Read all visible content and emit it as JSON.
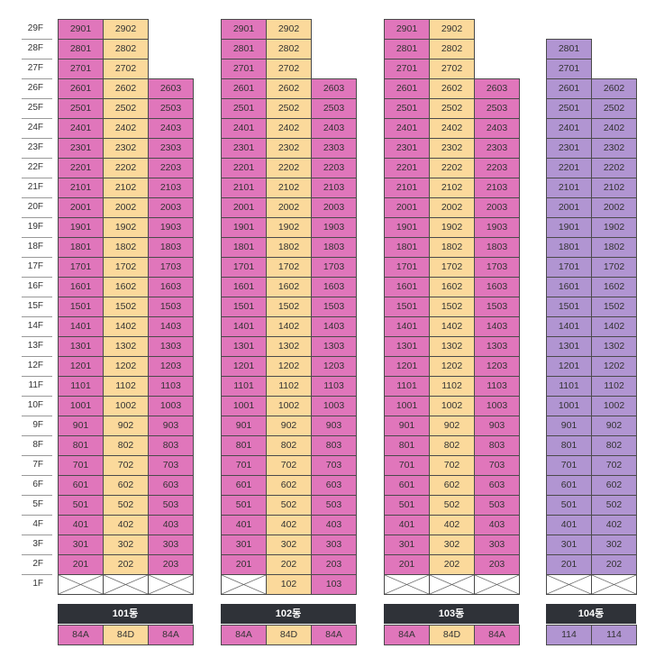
{
  "colors": {
    "pink": "#e076bb",
    "yellow": "#fbd99b",
    "purple": "#b195d2",
    "header_bg": "#2f3238"
  },
  "floors": [
    "29F",
    "28F",
    "27F",
    "26F",
    "25F",
    "24F",
    "23F",
    "22F",
    "21F",
    "20F",
    "19F",
    "18F",
    "17F",
    "16F",
    "15F",
    "14F",
    "13F",
    "12F",
    "11F",
    "10F",
    "9F",
    "8F",
    "7F",
    "6F",
    "5F",
    "4F",
    "3F",
    "2F",
    "1F"
  ],
  "buildings": [
    {
      "name": "101동",
      "columns": [
        {
          "type": "84A",
          "color": "pink",
          "top": 29,
          "units": [
            "2901",
            "2801",
            "2701",
            "2601",
            "2501",
            "2401",
            "2301",
            "2201",
            "2101",
            "2001",
            "1901",
            "1801",
            "1701",
            "1601",
            "1501",
            "1401",
            "1301",
            "1201",
            "1101",
            "1001",
            "901",
            "801",
            "701",
            "601",
            "501",
            "401",
            "301",
            "201",
            ""
          ]
        },
        {
          "type": "84D",
          "color": "yellow",
          "top": 29,
          "units": [
            "2902",
            "2802",
            "2702",
            "2602",
            "2502",
            "2402",
            "2302",
            "2202",
            "2102",
            "2002",
            "1902",
            "1802",
            "1702",
            "1602",
            "1502",
            "1402",
            "1302",
            "1202",
            "1102",
            "1002",
            "902",
            "802",
            "702",
            "602",
            "502",
            "402",
            "302",
            "202",
            ""
          ]
        },
        {
          "type": "84A",
          "color": "pink",
          "top": 26,
          "units": [
            "2603",
            "2503",
            "2403",
            "2303",
            "2203",
            "2103",
            "2003",
            "1903",
            "1803",
            "1703",
            "1603",
            "1503",
            "1403",
            "1303",
            "1203",
            "1103",
            "1003",
            "903",
            "803",
            "703",
            "603",
            "503",
            "403",
            "303",
            "203",
            ""
          ]
        }
      ]
    },
    {
      "name": "102동",
      "columns": [
        {
          "type": "84A",
          "color": "pink",
          "top": 29,
          "units": [
            "2901",
            "2801",
            "2701",
            "2601",
            "2501",
            "2401",
            "2301",
            "2201",
            "2101",
            "2001",
            "1901",
            "1801",
            "1701",
            "1601",
            "1501",
            "1401",
            "1301",
            "1201",
            "1101",
            "1001",
            "901",
            "801",
            "701",
            "601",
            "501",
            "401",
            "301",
            "201",
            ""
          ]
        },
        {
          "type": "84D",
          "color": "yellow",
          "top": 29,
          "units": [
            "2902",
            "2802",
            "2702",
            "2602",
            "2502",
            "2402",
            "2302",
            "2202",
            "2102",
            "2002",
            "1902",
            "1802",
            "1702",
            "1602",
            "1502",
            "1402",
            "1302",
            "1202",
            "1102",
            "1002",
            "902",
            "802",
            "702",
            "602",
            "502",
            "402",
            "302",
            "202",
            "102"
          ]
        },
        {
          "type": "84A",
          "color": "pink",
          "top": 26,
          "units": [
            "2603",
            "2503",
            "2403",
            "2303",
            "2203",
            "2103",
            "2003",
            "1903",
            "1803",
            "1703",
            "1603",
            "1503",
            "1403",
            "1303",
            "1203",
            "1103",
            "1003",
            "903",
            "803",
            "703",
            "603",
            "503",
            "403",
            "303",
            "203",
            "103"
          ]
        }
      ]
    },
    {
      "name": "103동",
      "columns": [
        {
          "type": "84A",
          "color": "pink",
          "top": 29,
          "units": [
            "2901",
            "2801",
            "2701",
            "2601",
            "2501",
            "2401",
            "2301",
            "2201",
            "2101",
            "2001",
            "1901",
            "1801",
            "1701",
            "1601",
            "1501",
            "1401",
            "1301",
            "1201",
            "1101",
            "1001",
            "901",
            "801",
            "701",
            "601",
            "501",
            "401",
            "301",
            "201",
            ""
          ]
        },
        {
          "type": "84D",
          "color": "yellow",
          "top": 29,
          "units": [
            "2902",
            "2802",
            "2702",
            "2602",
            "2502",
            "2402",
            "2302",
            "2202",
            "2102",
            "2002",
            "1902",
            "1802",
            "1702",
            "1602",
            "1502",
            "1402",
            "1302",
            "1202",
            "1102",
            "1002",
            "902",
            "802",
            "702",
            "602",
            "502",
            "402",
            "302",
            "202",
            ""
          ]
        },
        {
          "type": "84A",
          "color": "pink",
          "top": 26,
          "units": [
            "2603",
            "2503",
            "2403",
            "2303",
            "2203",
            "2103",
            "2003",
            "1903",
            "1803",
            "1703",
            "1603",
            "1503",
            "1403",
            "1303",
            "1203",
            "1103",
            "1003",
            "903",
            "803",
            "703",
            "603",
            "503",
            "403",
            "303",
            "203",
            ""
          ]
        }
      ]
    },
    {
      "name": "104동",
      "columns": [
        {
          "type": "114",
          "color": "purple",
          "top": 28,
          "units": [
            "2801",
            "2701",
            "2601",
            "2501",
            "2401",
            "2301",
            "2201",
            "2101",
            "2001",
            "1901",
            "1801",
            "1701",
            "1601",
            "1501",
            "1401",
            "1301",
            "1201",
            "1101",
            "1001",
            "901",
            "801",
            "701",
            "601",
            "501",
            "401",
            "301",
            "201",
            ""
          ]
        },
        {
          "type": "114",
          "color": "purple",
          "top": 26,
          "units": [
            "2602",
            "2502",
            "2402",
            "2302",
            "2202",
            "2102",
            "2002",
            "1902",
            "1802",
            "1702",
            "1602",
            "1502",
            "1402",
            "1302",
            "1202",
            "1102",
            "1002",
            "902",
            "802",
            "702",
            "602",
            "502",
            "402",
            "302",
            "202",
            ""
          ]
        }
      ]
    }
  ]
}
